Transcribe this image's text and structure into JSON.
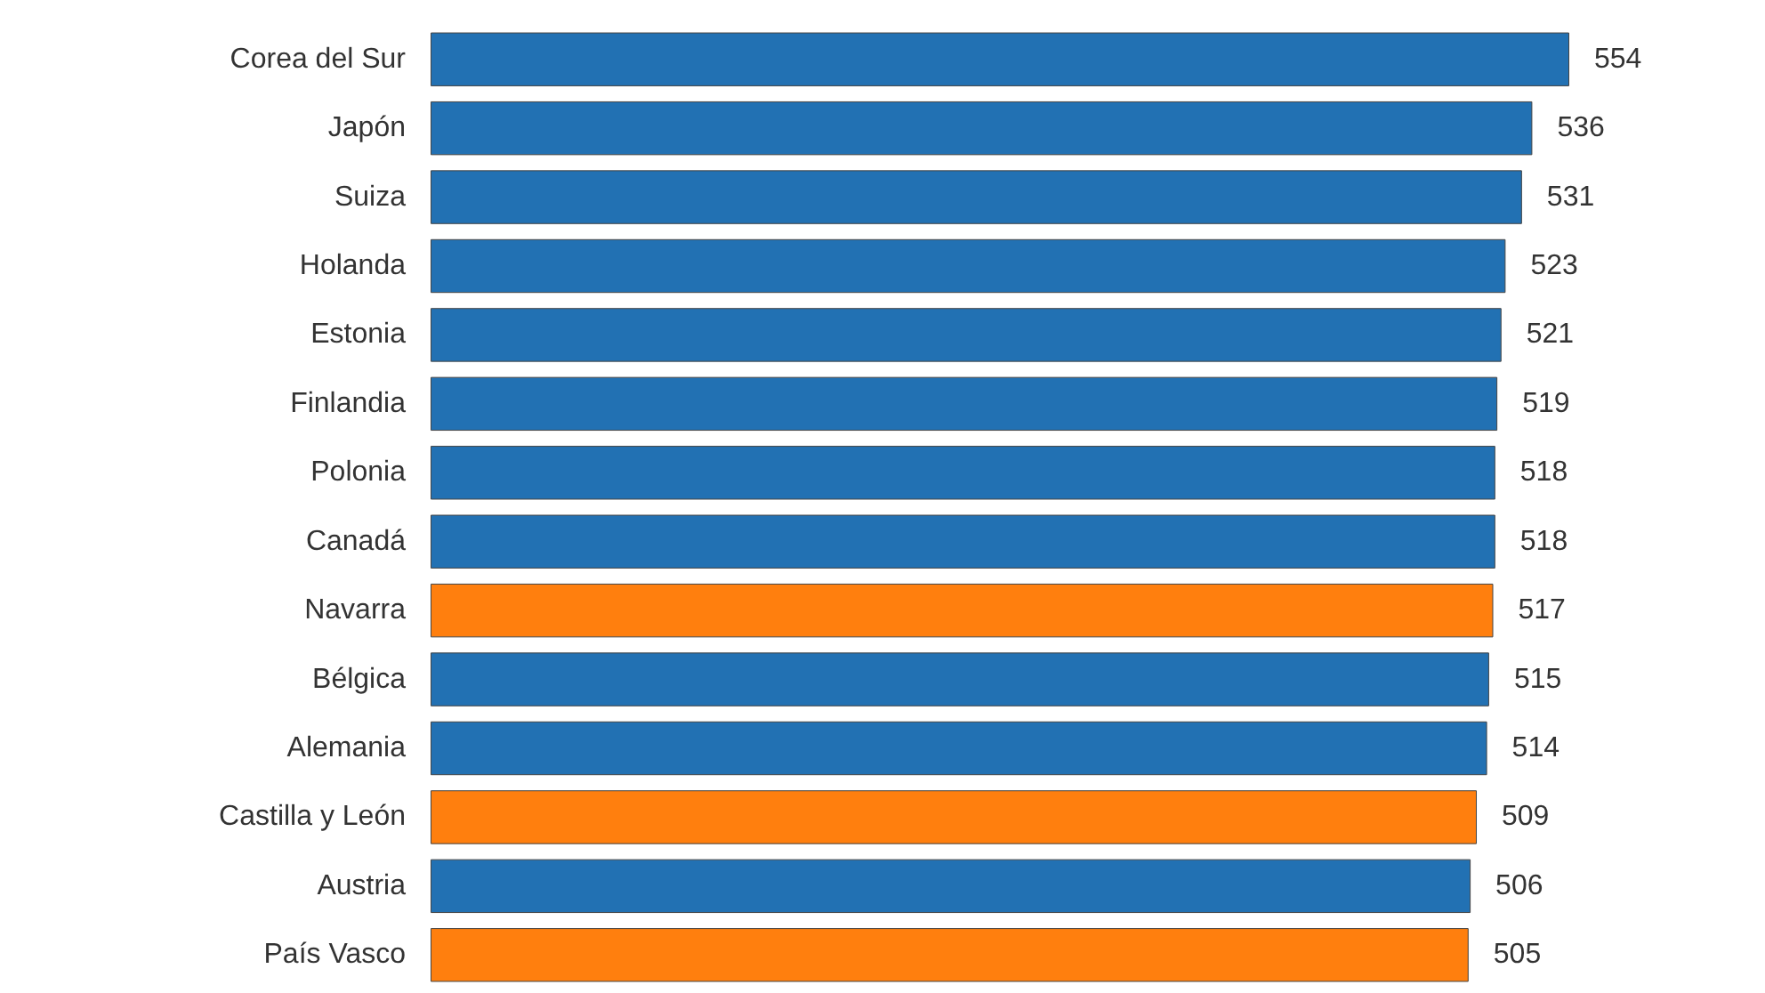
{
  "chart_data": {
    "type": "bar",
    "orientation": "horizontal",
    "categories": [
      "Corea del Sur",
      "Japón",
      "Suiza",
      "Holanda",
      "Estonia",
      "Finlandia",
      "Polonia",
      "Canadá",
      "Navarra",
      "Bélgica",
      "Alemania",
      "Castilla y León",
      "Austria",
      "País Vasco"
    ],
    "values": [
      554,
      536,
      531,
      523,
      521,
      519,
      518,
      518,
      517,
      515,
      514,
      509,
      506,
      505
    ],
    "colors": [
      "#2271b3",
      "#2271b3",
      "#2271b3",
      "#2271b3",
      "#2271b3",
      "#2271b3",
      "#2271b3",
      "#2271b3",
      "#ff7f0e",
      "#2271b3",
      "#2271b3",
      "#ff7f0e",
      "#2271b3",
      "#ff7f0e"
    ],
    "data_labels": true
  }
}
